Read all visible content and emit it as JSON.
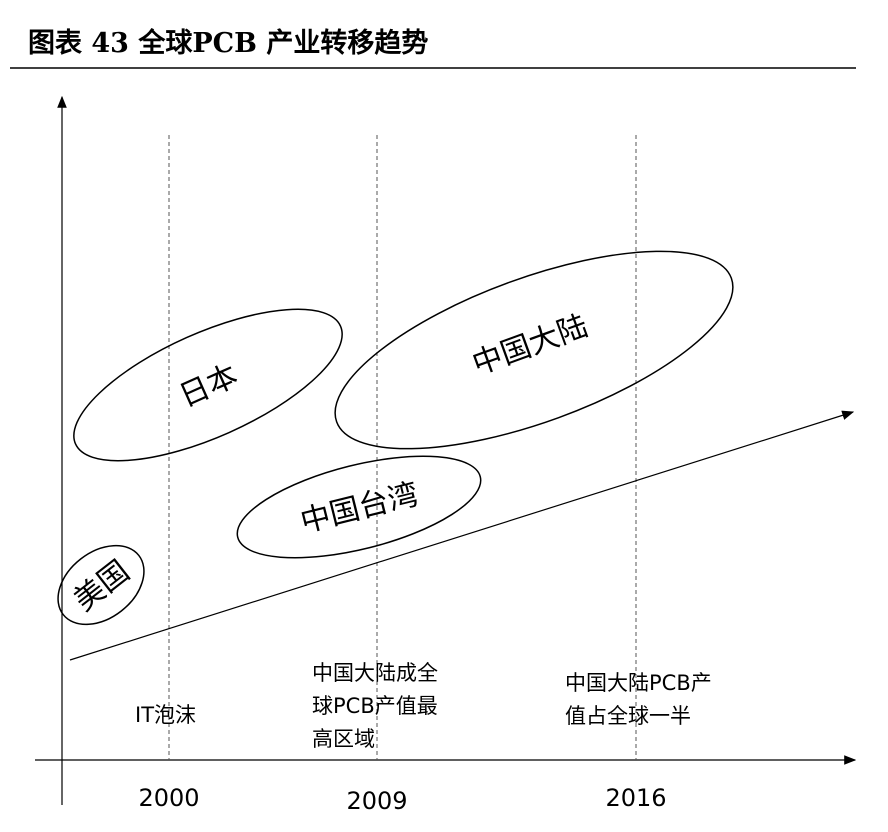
{
  "header": {
    "title": "图表 43   全球PCB 产业转移趋势"
  },
  "regions": [
    {
      "label": "美国"
    },
    {
      "label": "日本"
    },
    {
      "label": "中国台湾"
    },
    {
      "label": "中国大陆"
    }
  ],
  "years": [
    "2000",
    "2009",
    "2016"
  ],
  "annotations": [
    {
      "lines": [
        "IT泡沫"
      ]
    },
    {
      "lines": [
        "中国大陆成全",
        "球PCB产值最",
        "高区域"
      ]
    },
    {
      "lines": [
        "中国大陆PCB产",
        "值占全球一半"
      ]
    }
  ]
}
